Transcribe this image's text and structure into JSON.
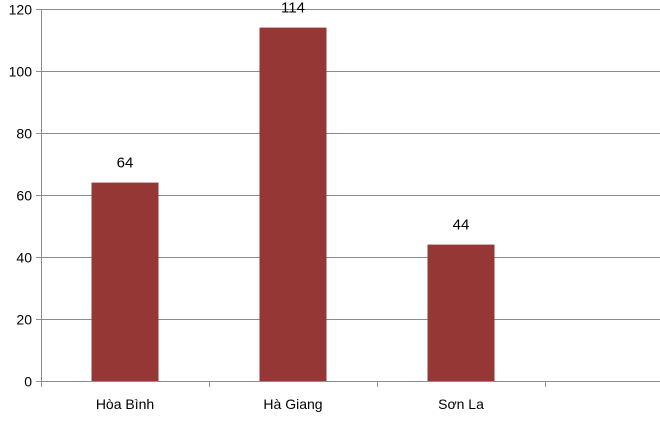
{
  "chart_data": {
    "type": "bar",
    "categories": [
      "Hòa Bình",
      "Hà Giang",
      "Sơn La"
    ],
    "values": [
      64,
      114,
      44
    ],
    "data_labels": [
      "64",
      "114",
      "44"
    ],
    "title": "",
    "xlabel": "",
    "ylabel": "",
    "ylim": [
      0,
      120
    ],
    "yticks": [
      0,
      20,
      40,
      60,
      80,
      100,
      120
    ],
    "ytick_labels": [
      "0",
      "20",
      "40",
      "60",
      "80",
      "100",
      "120"
    ],
    "grid": true,
    "legend": "none",
    "bar_color": "#953735",
    "grid_color": "#8c8c8c",
    "axis_color": "#8c8c8c"
  }
}
